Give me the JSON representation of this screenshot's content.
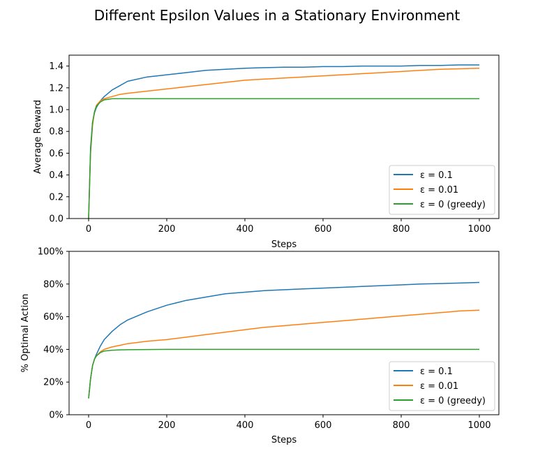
{
  "figure": {
    "title": "Different Epsilon Values in a Stationary Environment"
  },
  "colors": {
    "eps_0_1": "#1f77b4",
    "eps_0_01": "#ff7f0e",
    "eps_0": "#2ca02c"
  },
  "chart_data": [
    {
      "type": "line",
      "title": "",
      "xlabel": "Steps",
      "ylabel": "Average Reward",
      "xlim": [
        -50,
        1050
      ],
      "ylim": [
        0.0,
        1.5
      ],
      "xticks": [
        0,
        200,
        400,
        600,
        800,
        1000
      ],
      "xtick_labels": [
        "0",
        "200",
        "400",
        "600",
        "800",
        "1000"
      ],
      "yticks": [
        0.0,
        0.2,
        0.4,
        0.6,
        0.8,
        1.0,
        1.2,
        1.4
      ],
      "ytick_labels": [
        "0.0",
        "0.2",
        "0.4",
        "0.6",
        "0.8",
        "1.0",
        "1.2",
        "1.4"
      ],
      "grid": false,
      "legend_position": "lower right",
      "series": [
        {
          "name": "ε = 0.1",
          "color": "#1f77b4",
          "x": [
            0,
            5,
            10,
            15,
            20,
            30,
            40,
            60,
            80,
            100,
            150,
            200,
            250,
            300,
            350,
            400,
            450,
            500,
            550,
            600,
            650,
            700,
            750,
            800,
            850,
            900,
            950,
            1000
          ],
          "y": [
            0.0,
            0.65,
            0.88,
            0.97,
            1.02,
            1.08,
            1.12,
            1.18,
            1.22,
            1.26,
            1.3,
            1.32,
            1.34,
            1.36,
            1.37,
            1.38,
            1.385,
            1.39,
            1.39,
            1.395,
            1.395,
            1.4,
            1.4,
            1.4,
            1.405,
            1.405,
            1.41,
            1.41
          ]
        },
        {
          "name": "ε = 0.01",
          "color": "#ff7f0e",
          "x": [
            0,
            5,
            10,
            15,
            20,
            30,
            40,
            60,
            80,
            100,
            150,
            200,
            250,
            300,
            350,
            400,
            450,
            500,
            550,
            600,
            650,
            700,
            750,
            800,
            850,
            900,
            950,
            1000
          ],
          "y": [
            0.0,
            0.6,
            0.85,
            0.98,
            1.04,
            1.08,
            1.1,
            1.12,
            1.14,
            1.15,
            1.17,
            1.19,
            1.21,
            1.23,
            1.25,
            1.27,
            1.28,
            1.29,
            1.3,
            1.31,
            1.32,
            1.33,
            1.34,
            1.35,
            1.36,
            1.37,
            1.375,
            1.38
          ]
        },
        {
          "name": "ε = 0 (greedy)",
          "color": "#2ca02c",
          "x": [
            0,
            5,
            10,
            15,
            20,
            30,
            40,
            60,
            80,
            100,
            150,
            200,
            300,
            400,
            500,
            600,
            700,
            800,
            900,
            1000
          ],
          "y": [
            0.0,
            0.62,
            0.88,
            0.98,
            1.03,
            1.07,
            1.09,
            1.1,
            1.1,
            1.1,
            1.1,
            1.1,
            1.1,
            1.1,
            1.1,
            1.1,
            1.1,
            1.1,
            1.1,
            1.1
          ]
        }
      ]
    },
    {
      "type": "line",
      "title": "",
      "xlabel": "Steps",
      "ylabel": "% Optimal Action",
      "xlim": [
        -50,
        1050
      ],
      "ylim": [
        0,
        100
      ],
      "xticks": [
        0,
        200,
        400,
        600,
        800,
        1000
      ],
      "xtick_labels": [
        "0",
        "200",
        "400",
        "600",
        "800",
        "1000"
      ],
      "yticks": [
        0,
        20,
        40,
        60,
        80,
        100
      ],
      "ytick_labels": [
        "0%",
        "20%",
        "40%",
        "60%",
        "80%",
        "100%"
      ],
      "grid": false,
      "legend_position": "lower right",
      "series": [
        {
          "name": "ε = 0.1",
          "color": "#1f77b4",
          "x": [
            0,
            5,
            10,
            15,
            20,
            30,
            40,
            60,
            80,
            100,
            150,
            200,
            250,
            300,
            350,
            400,
            450,
            500,
            550,
            600,
            650,
            700,
            750,
            800,
            850,
            900,
            950,
            1000
          ],
          "y": [
            10,
            22,
            30,
            34,
            37,
            42,
            46,
            51,
            55,
            58,
            63,
            67,
            70,
            72,
            74,
            75,
            76,
            76.5,
            77,
            77.5,
            78,
            78.5,
            79,
            79.5,
            80,
            80.3,
            80.6,
            81
          ]
        },
        {
          "name": "ε = 0.01",
          "color": "#ff7f0e",
          "x": [
            0,
            5,
            10,
            15,
            20,
            30,
            40,
            60,
            80,
            100,
            150,
            200,
            250,
            300,
            350,
            400,
            450,
            500,
            550,
            600,
            650,
            700,
            750,
            800,
            850,
            900,
            950,
            1000
          ],
          "y": [
            10,
            22,
            30,
            34,
            36,
            38.5,
            40,
            41.5,
            42.5,
            43.5,
            45,
            46,
            47.5,
            49,
            50.5,
            52,
            53.5,
            54.5,
            55.5,
            56.5,
            57.5,
            58.5,
            59.5,
            60.5,
            61.5,
            62.5,
            63.5,
            64
          ]
        },
        {
          "name": "ε = 0 (greedy)",
          "color": "#2ca02c",
          "x": [
            0,
            5,
            10,
            15,
            20,
            30,
            40,
            60,
            80,
            100,
            150,
            200,
            300,
            400,
            500,
            600,
            700,
            800,
            900,
            1000
          ],
          "y": [
            10,
            22,
            30,
            34,
            36,
            38,
            39,
            39.5,
            39.7,
            39.8,
            39.9,
            40,
            40,
            40,
            40,
            40,
            40,
            40,
            40,
            40
          ]
        }
      ]
    }
  ]
}
